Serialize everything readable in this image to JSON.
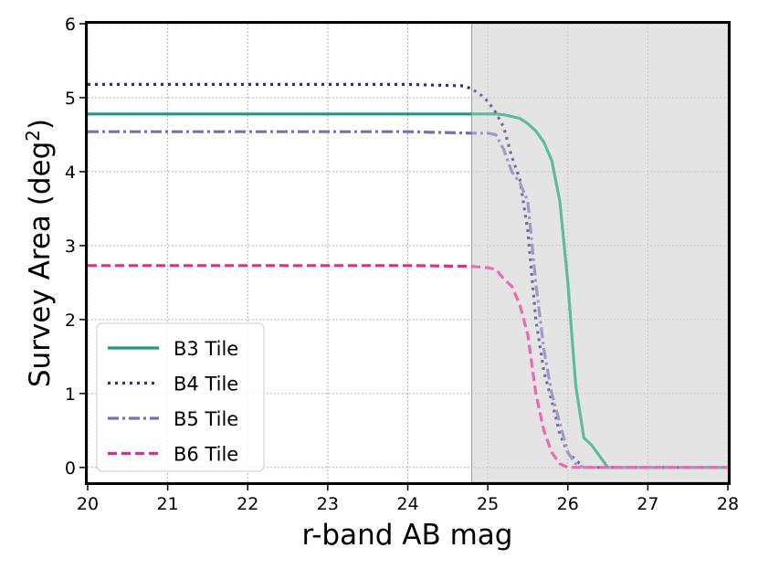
{
  "chart_data": {
    "type": "line",
    "xlabel": "r-band AB mag",
    "ylabel_main": "Survey Area (deg",
    "ylabel_sup": "2",
    "ylabel_close": ")",
    "xlim": [
      20,
      28
    ],
    "ylim": [
      -0.2,
      6
    ],
    "xticks": [
      20,
      21,
      22,
      23,
      24,
      25,
      26,
      27,
      28
    ],
    "yticks": [
      0,
      1,
      2,
      3,
      4,
      5,
      6
    ],
    "grid": true,
    "shaded_region": {
      "x_start": 24.8,
      "x_end": 28,
      "color": "#d9d9d9"
    },
    "legend_position": "lower-left",
    "series": [
      {
        "name": "B3 Tile",
        "color": "#1b9e77",
        "dash": "solid",
        "x": [
          20,
          24.8,
          25.1,
          25.2,
          25.4,
          25.5,
          25.6,
          25.7,
          25.8,
          25.9,
          26.0,
          26.05,
          26.1,
          26.2,
          26.3,
          26.4,
          26.5,
          28
        ],
        "y": [
          4.78,
          4.78,
          4.78,
          4.77,
          4.72,
          4.65,
          4.55,
          4.4,
          4.15,
          3.6,
          2.5,
          1.8,
          1.1,
          0.4,
          0.3,
          0.15,
          0.0,
          0.0
        ]
      },
      {
        "name": "B4 Tile",
        "color": "#3d2a7a",
        "dash": "dotted",
        "x": [
          20,
          24.0,
          24.7,
          24.8,
          24.9,
          25.0,
          25.1,
          25.2,
          25.3,
          25.4,
          25.5,
          25.6,
          25.7,
          25.8,
          25.9,
          26.0,
          26.1,
          26.2,
          26.3,
          28
        ],
        "y": [
          5.18,
          5.18,
          5.16,
          5.12,
          5.05,
          4.95,
          4.8,
          4.6,
          4.2,
          3.9,
          3.2,
          2.0,
          1.3,
          0.9,
          0.45,
          0.2,
          0.1,
          0.0,
          0.0,
          0.0
        ]
      },
      {
        "name": "B5 Tile",
        "color": "#7570b3",
        "dash": "dashdot",
        "x": [
          20,
          24.0,
          24.8,
          25.0,
          25.1,
          25.2,
          25.3,
          25.4,
          25.5,
          25.6,
          25.7,
          25.8,
          25.9,
          26.0,
          26.1,
          26.2,
          28
        ],
        "y": [
          4.54,
          4.54,
          4.52,
          4.52,
          4.5,
          4.3,
          4.0,
          3.85,
          3.6,
          2.5,
          1.6,
          1.0,
          0.6,
          0.2,
          0.05,
          0.0,
          0.0
        ]
      },
      {
        "name": "B6 Tile",
        "color": "#e7298a",
        "dash": "dashed",
        "x": [
          20,
          24.0,
          24.8,
          25.0,
          25.1,
          25.2,
          25.3,
          25.4,
          25.5,
          25.6,
          25.7,
          25.8,
          25.9,
          26.0,
          28
        ],
        "y": [
          2.73,
          2.73,
          2.72,
          2.7,
          2.68,
          2.55,
          2.45,
          2.2,
          1.8,
          1.0,
          0.5,
          0.2,
          0.05,
          0.0,
          0.0
        ]
      }
    ]
  }
}
